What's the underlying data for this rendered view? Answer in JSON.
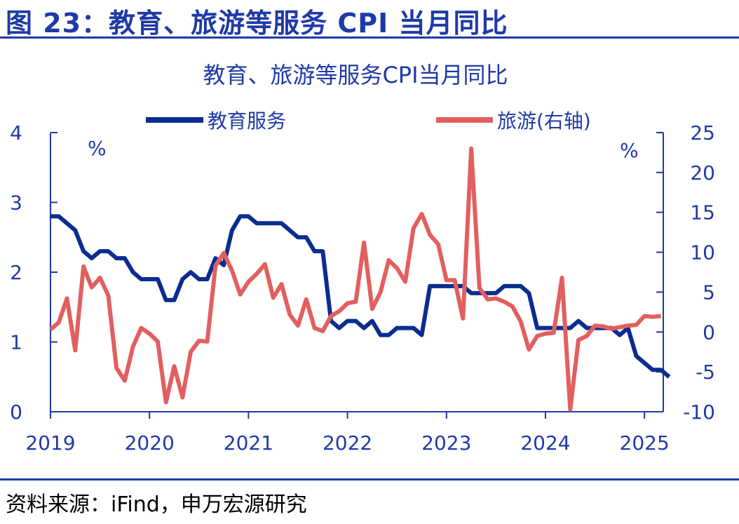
{
  "figure": {
    "title": "图 23：教育、旅游等服务 CPI 当月同比",
    "source": "资料来源：iFind，申万宏源研究"
  },
  "chart_data": {
    "type": "line",
    "title": "教育、旅游等服务CPI当月同比",
    "x_tick_labels": [
      "2019",
      "2020",
      "2021",
      "2022",
      "2023",
      "2024",
      "2025"
    ],
    "x_range": [
      2019.0,
      2025.19
    ],
    "y_left": {
      "unit": "%",
      "range": [
        0,
        4
      ],
      "ticks": [
        0,
        1,
        2,
        3,
        4
      ]
    },
    "y_right": {
      "unit": "%",
      "range": [
        -10,
        25
      ],
      "ticks": [
        -10,
        -5,
        0,
        5,
        10,
        15,
        20,
        25
      ]
    },
    "colors": {
      "education": "#0a2d8f",
      "tourism": "#e35f5f",
      "axis": "#1f3aa6"
    },
    "series": [
      {
        "name": "教育服务",
        "axis": "left",
        "start": "2019-01",
        "values": [
          2.8,
          2.8,
          2.7,
          2.6,
          2.3,
          2.2,
          2.3,
          2.3,
          2.2,
          2.2,
          2.0,
          1.9,
          1.9,
          1.9,
          1.6,
          1.6,
          1.9,
          2.0,
          1.9,
          1.9,
          2.2,
          2.1,
          2.6,
          2.8,
          2.8,
          2.7,
          2.7,
          2.7,
          2.7,
          2.6,
          2.5,
          2.5,
          2.3,
          2.3,
          1.3,
          1.2,
          1.3,
          1.3,
          1.2,
          1.3,
          1.1,
          1.1,
          1.2,
          1.2,
          1.2,
          1.1,
          1.8,
          1.8,
          1.8,
          1.8,
          1.8,
          1.7,
          1.7,
          1.7,
          1.7,
          1.8,
          1.8,
          1.8,
          1.7,
          1.2,
          1.2,
          1.2,
          1.2,
          1.2,
          1.3,
          1.2,
          1.2,
          1.2,
          1.2,
          1.1,
          1.2,
          0.8,
          0.7,
          0.6,
          0.6,
          0.5
        ]
      },
      {
        "name": "旅游(右轴)",
        "axis": "right",
        "start": "2019-01",
        "values": [
          0.3,
          1.2,
          4.2,
          -2.3,
          8.2,
          5.6,
          6.8,
          4.6,
          -4.5,
          -6.1,
          -1.8,
          0.5,
          -0.2,
          -1.2,
          -8.8,
          -4.3,
          -8.2,
          -2.5,
          -1.1,
          -1.2,
          8.3,
          9.9,
          7.7,
          4.7,
          6.3,
          7.3,
          8.5,
          4.3,
          6.0,
          2.2,
          0.8,
          4.1,
          0.5,
          0.1,
          2.0,
          2.6,
          3.6,
          3.8,
          11.2,
          2.9,
          5.0,
          9.0,
          8.0,
          6.3,
          13.0,
          14.8,
          12.2,
          11.0,
          6.5,
          6.5,
          1.7,
          23.0,
          5.5,
          4.1,
          4.2,
          3.8,
          3.2,
          1.3,
          -2.2,
          -0.5,
          -0.2,
          -0.1,
          6.8,
          -9.7,
          -1.0,
          -0.5,
          0.8,
          0.7,
          0.4,
          0.6,
          0.8,
          0.9,
          2.0,
          1.9,
          2.0
        ]
      }
    ]
  }
}
